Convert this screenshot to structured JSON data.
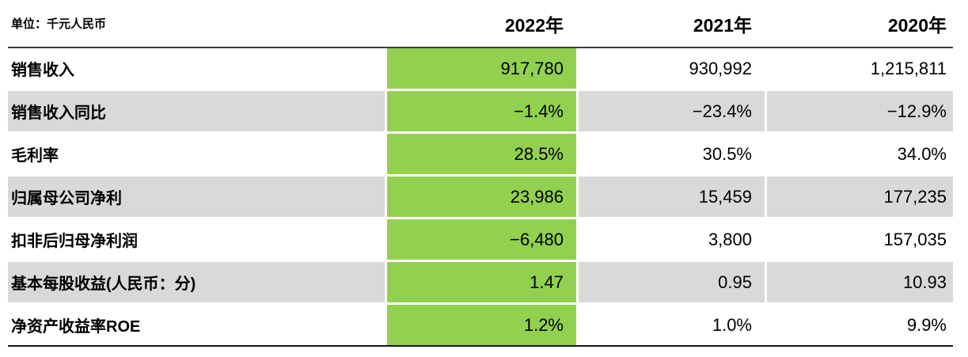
{
  "header": {
    "unit_label": "单位：千元人民币"
  },
  "chart_data": {
    "type": "table",
    "title": "单位：千元人民币",
    "columns": [
      "2022年",
      "2021年",
      "2020年"
    ],
    "highlighted_column": "2022年",
    "rows": [
      {
        "label": "销售收入",
        "values": [
          "917,780",
          "930,992",
          "1,215,811"
        ]
      },
      {
        "label": "销售收入同比",
        "values": [
          "−1.4%",
          "−23.4%",
          "−12.9%"
        ]
      },
      {
        "label": "毛利率",
        "values": [
          "28.5%",
          "30.5%",
          "34.0%"
        ]
      },
      {
        "label": "归属母公司净利",
        "values": [
          "23,986",
          "15,459",
          "177,235"
        ]
      },
      {
        "label": "扣非后归母净利润",
        "values": [
          "−6,480",
          "3,800",
          "157,035"
        ]
      },
      {
        "label": "基本每股收益(人民币：分)",
        "values": [
          "1.47",
          "0.95",
          "10.93"
        ]
      },
      {
        "label": "净资产收益率ROE",
        "values": [
          "1.2%",
          "1.0%",
          "9.9%"
        ]
      }
    ],
    "layout": {
      "value_alignment": "right",
      "zebra_striping": true,
      "legend_position": "none",
      "grid": "off"
    }
  },
  "colors": {
    "highlight_green": "#92D050",
    "row_gray": "#D9D9D9",
    "rule_top": "#3d3d3d",
    "rule_bottom": "#161616",
    "text": "#000000",
    "background": "#ffffff"
  }
}
